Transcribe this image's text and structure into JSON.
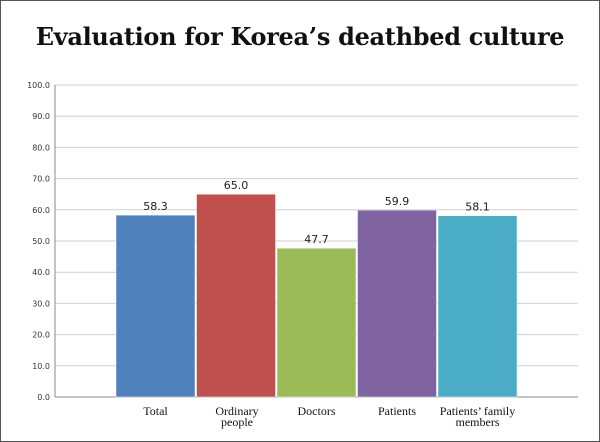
{
  "chart_data": {
    "type": "bar",
    "title": "Evaluation for Korea’s deathbed culture",
    "xlabel": "",
    "ylabel": "",
    "ylim": [
      0,
      100
    ],
    "yticks": [
      "0.0",
      "10.0",
      "20.0",
      "30.0",
      "40.0",
      "50.0",
      "60.0",
      "70.0",
      "80.0",
      "90.0",
      "100.0"
    ],
    "grid": true,
    "categories": [
      {
        "label_lines": [
          "Total"
        ]
      },
      {
        "label_lines": [
          "Ordinary",
          "people"
        ]
      },
      {
        "label_lines": [
          "Doctors"
        ]
      },
      {
        "label_lines": [
          "Patients"
        ]
      },
      {
        "label_lines": [
          "Patients’ family",
          "members"
        ]
      }
    ],
    "values": [
      58.3,
      65.0,
      47.7,
      59.9,
      58.1
    ],
    "value_labels": [
      "58.3",
      "65.0",
      "47.7",
      "59.9",
      "58.1"
    ],
    "colors": [
      "#4F81BD",
      "#C0504D",
      "#9BBB59",
      "#8064A2",
      "#4BACC6"
    ]
  }
}
